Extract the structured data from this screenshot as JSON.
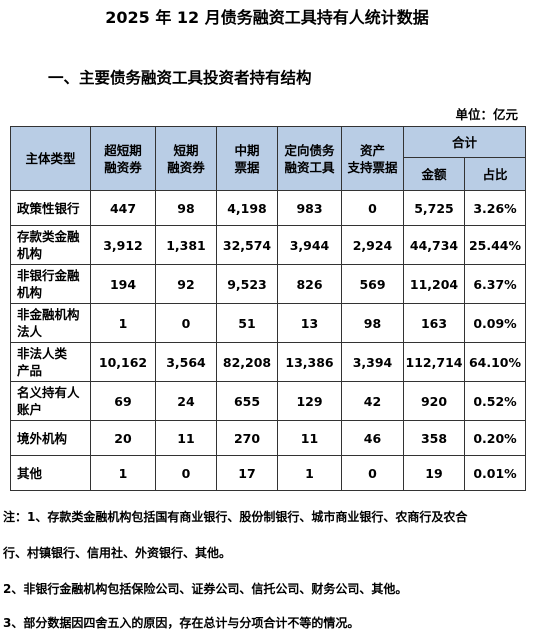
{
  "title": "2025 年 12 月债务融资工具持有人统计数据",
  "section_title": "一、主要债务融资工具投资者持有结构",
  "unit": "单位：亿元",
  "headers": {
    "category": "主体类型",
    "cols": [
      "超短期\n融资券",
      "短期\n融资券",
      "中期\n票据",
      "定向债务\n融资工具",
      "资产\n支持票据"
    ],
    "total": "合计",
    "amount": "金额",
    "ratio": "占比"
  },
  "rows": [
    {
      "name": "政策性银行",
      "values": [
        "447",
        "98",
        "4,198",
        "983",
        "0",
        "5,725",
        "3.26%"
      ]
    },
    {
      "name": "存款类金融\n机构",
      "values": [
        "3,912",
        "1,381",
        "32,574",
        "3,944",
        "2,924",
        "44,734",
        "25.44%"
      ]
    },
    {
      "name": "非银行金融\n机构",
      "values": [
        "194",
        "92",
        "9,523",
        "826",
        "569",
        "11,204",
        "6.37%"
      ]
    },
    {
      "name": "非金融机构\n法人",
      "values": [
        "1",
        "0",
        "51",
        "13",
        "98",
        "163",
        "0.09%"
      ]
    },
    {
      "name": "非法人类\n产品",
      "values": [
        "10,162",
        "3,564",
        "82,208",
        "13,386",
        "3,394",
        "112,714",
        "64.10%"
      ]
    },
    {
      "name": "名义持有人\n账户",
      "values": [
        "69",
        "24",
        "655",
        "129",
        "42",
        "920",
        "0.52%"
      ]
    },
    {
      "name": "境外机构",
      "values": [
        "20",
        "11",
        "270",
        "11",
        "46",
        "358",
        "0.20%"
      ]
    },
    {
      "name": "其他",
      "values": [
        "1",
        "0",
        "17",
        "1",
        "0",
        "19",
        "0.01%"
      ]
    }
  ],
  "notes": [
    "注：1、存款类金融机构包括国有商业银行、股份制银行、城市商业银行、农商行及农合",
    "行、村镇银行、信用社、外资银行、其他。",
    "2、非银行金融机构包括保险公司、证券公司、信托公司、财务公司、其他。",
    "3、部分数据因四舍五入的原因，存在总计与分项合计不等的情况。"
  ]
}
